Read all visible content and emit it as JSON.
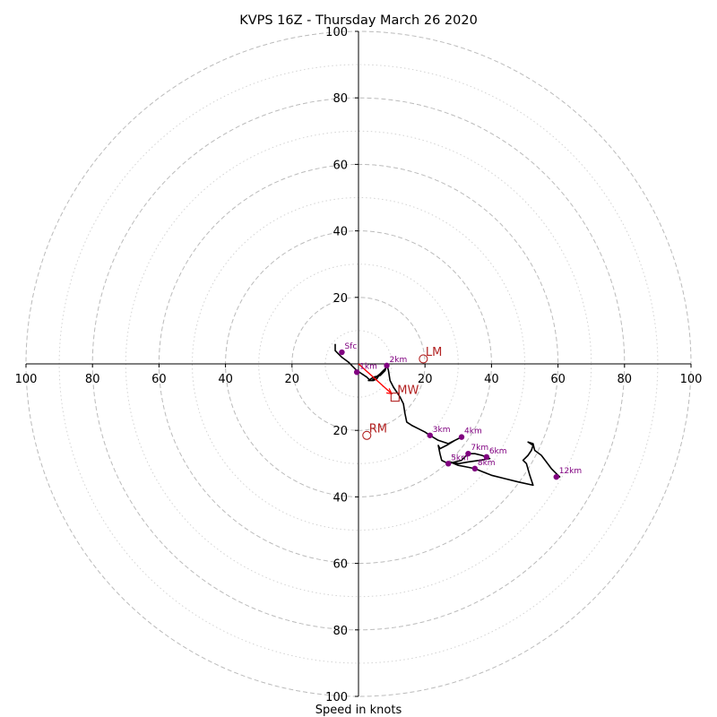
{
  "chart_data": {
    "type": "hodograph",
    "title": "KVPS 16Z - Thursday March 26 2020",
    "xlabel": "Speed in knots",
    "axis_range": [
      -100,
      100
    ],
    "ring_major": [
      20,
      40,
      60,
      80,
      100
    ],
    "ring_minor": [
      10,
      30,
      50,
      70,
      90
    ],
    "x_tick_labels": [
      "100",
      "80",
      "60",
      "40",
      "20",
      "20",
      "40",
      "60",
      "80",
      "100"
    ],
    "y_tick_labels": [
      "100",
      "80",
      "60",
      "40",
      "20",
      "20",
      "40",
      "60",
      "80",
      "100"
    ],
    "colors": {
      "trace": "#000000",
      "height_markers": "#800080",
      "vectors": "#b22222",
      "mean_wind_line": "#ff0000",
      "grid": "#bbbbbb"
    },
    "trace": [
      [
        -7,
        6
      ],
      [
        -7,
        4
      ],
      [
        -6,
        3
      ],
      [
        -5,
        2
      ],
      [
        -3,
        0.5
      ],
      [
        -2,
        -0.5
      ],
      [
        -0.5,
        -2
      ],
      [
        1,
        -3
      ],
      [
        2.5,
        -4
      ],
      [
        3.5,
        -5
      ],
      [
        4.5,
        -5
      ],
      [
        5.5,
        -4.5
      ],
      [
        6.5,
        -3
      ],
      [
        8,
        -1.5
      ],
      [
        8.5,
        -1
      ],
      [
        6.5,
        -3
      ],
      [
        4,
        -5
      ],
      [
        3,
        -5
      ],
      [
        4.5,
        -4
      ],
      [
        6.5,
        -3.5
      ],
      [
        8,
        -2
      ],
      [
        8.5,
        -0.5
      ],
      [
        8.5,
        0
      ],
      [
        9,
        -2
      ],
      [
        9.5,
        -5
      ],
      [
        10,
        -6
      ],
      [
        10.5,
        -7
      ],
      [
        11.5,
        -8.5
      ],
      [
        12.5,
        -10
      ],
      [
        13.5,
        -12
      ],
      [
        14,
        -15
      ],
      [
        14.5,
        -17.5
      ],
      [
        16,
        -18.5
      ],
      [
        18,
        -19.5
      ],
      [
        20,
        -20.5
      ],
      [
        21.5,
        -21.5
      ],
      [
        24,
        -23
      ],
      [
        27,
        -24
      ],
      [
        31,
        -22
      ],
      [
        29,
        -23
      ],
      [
        26.5,
        -24.5
      ],
      [
        24.5,
        -25.5
      ],
      [
        24,
        -24.5
      ],
      [
        24.5,
        -27
      ],
      [
        25,
        -29
      ],
      [
        27,
        -30
      ],
      [
        31,
        -29
      ],
      [
        33,
        -27
      ],
      [
        35,
        -27
      ],
      [
        37,
        -27.5
      ],
      [
        38.5,
        -28
      ],
      [
        39.5,
        -28.5
      ],
      [
        36.5,
        -29
      ],
      [
        33,
        -29.5
      ],
      [
        30,
        -30
      ],
      [
        27.5,
        -29.5
      ],
      [
        30,
        -30.5
      ],
      [
        32.5,
        -31
      ],
      [
        35,
        -31.5
      ],
      [
        37.5,
        -32.5
      ],
      [
        40,
        -33.5
      ],
      [
        44,
        -34.5
      ],
      [
        48,
        -35.5
      ],
      [
        52.5,
        -36.5
      ],
      [
        51.5,
        -33.5
      ],
      [
        50.5,
        -30
      ],
      [
        49.5,
        -29
      ],
      [
        51,
        -27.5
      ],
      [
        52,
        -26
      ],
      [
        52.5,
        -24.5
      ],
      [
        51,
        -23.5
      ],
      [
        52.5,
        -24
      ],
      [
        53,
        -26
      ],
      [
        55,
        -27.5
      ],
      [
        56.5,
        -29.5
      ],
      [
        58,
        -31.5
      ],
      [
        59.5,
        -33
      ],
      [
        60.5,
        -34
      ],
      [
        59.5,
        -34
      ]
    ],
    "height_markers": [
      {
        "label": "Sfc",
        "u": -5,
        "v": 3.5
      },
      {
        "label": "1km",
        "u": -0.5,
        "v": -2.5
      },
      {
        "label": "2km",
        "u": 8.5,
        "v": -0.5
      },
      {
        "label": "3km",
        "u": 21.5,
        "v": -21.5
      },
      {
        "label": "4km",
        "u": 31,
        "v": -22
      },
      {
        "label": "5km",
        "u": 27,
        "v": -30
      },
      {
        "label": "6km",
        "u": 38.5,
        "v": -28
      },
      {
        "label": "7km",
        "u": 33,
        "v": -27
      },
      {
        "label": "8km",
        "u": 35,
        "v": -31.5
      },
      {
        "label": "12km",
        "u": 59.5,
        "v": -34
      }
    ],
    "storm_motion": [
      {
        "label": "LM",
        "u": 19.5,
        "v": 1.5,
        "marker": "circle"
      },
      {
        "label": "MW",
        "u": 11,
        "v": -10,
        "marker": "square"
      },
      {
        "label": "RM",
        "u": 2.5,
        "v": -21.5,
        "marker": "circle"
      }
    ],
    "mean_wind_vector": {
      "from": [
        0,
        0
      ],
      "to": [
        10,
        -9
      ]
    }
  }
}
